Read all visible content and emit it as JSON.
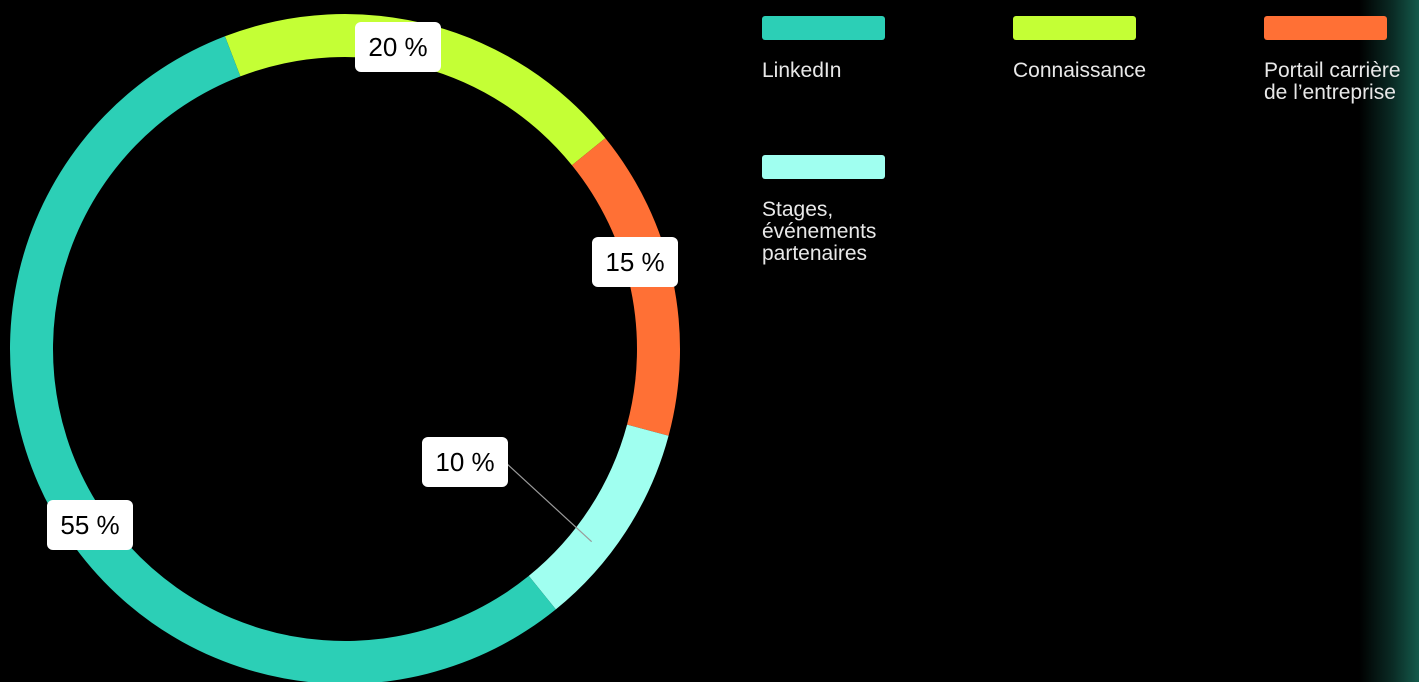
{
  "chart_data": {
    "type": "pie",
    "variant": "donut",
    "categories": [
      "LinkedIn",
      "Connaissance",
      "Portail carrière de l’entreprise",
      "Stages, événements partenaires"
    ],
    "values": [
      55,
      20,
      15,
      10
    ],
    "value_labels": [
      "55 %",
      "20 %",
      "15 %",
      "10 %"
    ],
    "colors": [
      "#2ccfb6",
      "#c4ff35",
      "#ff7035",
      "#a0fff0"
    ],
    "legend_position": "right",
    "title": ""
  },
  "legend": [
    {
      "label": "LinkedIn",
      "color": "#2ccfb6"
    },
    {
      "label": "Connaissance",
      "color": "#c4ff35"
    },
    {
      "label": "Portail carrière\nde l’entreprise",
      "color": "#ff7035"
    },
    {
      "label": "Stages,\névénements\npartenaires",
      "color": "#a0fff0"
    }
  ]
}
